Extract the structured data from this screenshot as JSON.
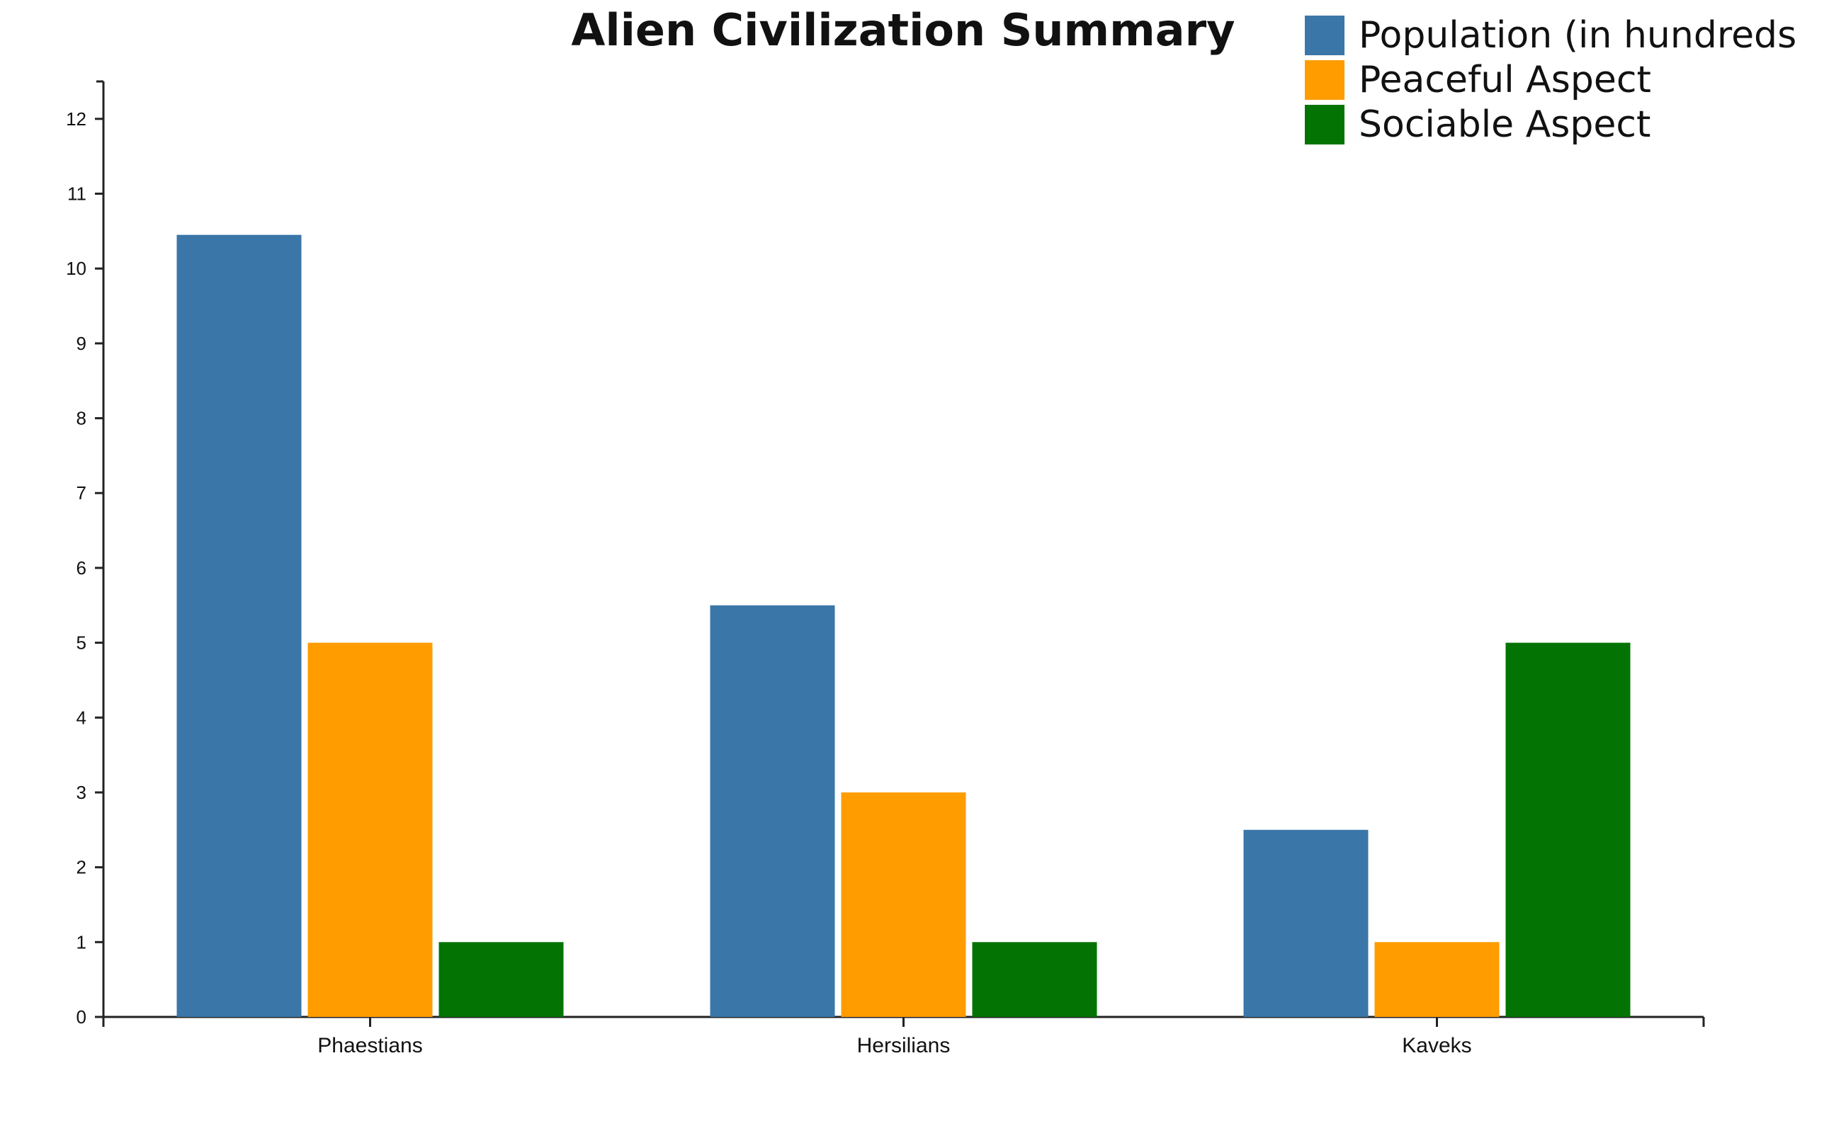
{
  "chart_data": {
    "type": "bar",
    "title": "Alien Civilization Summary",
    "xlabel": "",
    "ylabel": "",
    "categories": [
      "Phaestians",
      "Hersilians",
      "Kaveks"
    ],
    "series": [
      {
        "name": "Population (in hundreds",
        "color": "#3b76a8",
        "values": [
          10.45,
          5.5,
          2.5
        ]
      },
      {
        "name": "Peaceful Aspect",
        "color": "#ff9c00",
        "values": [
          5,
          3,
          1
        ]
      },
      {
        "name": "Sociable Aspect",
        "color": "#037403",
        "values": [
          1,
          1,
          5
        ]
      }
    ],
    "ylim": [
      0,
      12.5
    ],
    "yticks": [
      0,
      1,
      2,
      3,
      4,
      5,
      6,
      7,
      8,
      9,
      10,
      11,
      12
    ],
    "grid": false,
    "legend_position": "top-right"
  }
}
